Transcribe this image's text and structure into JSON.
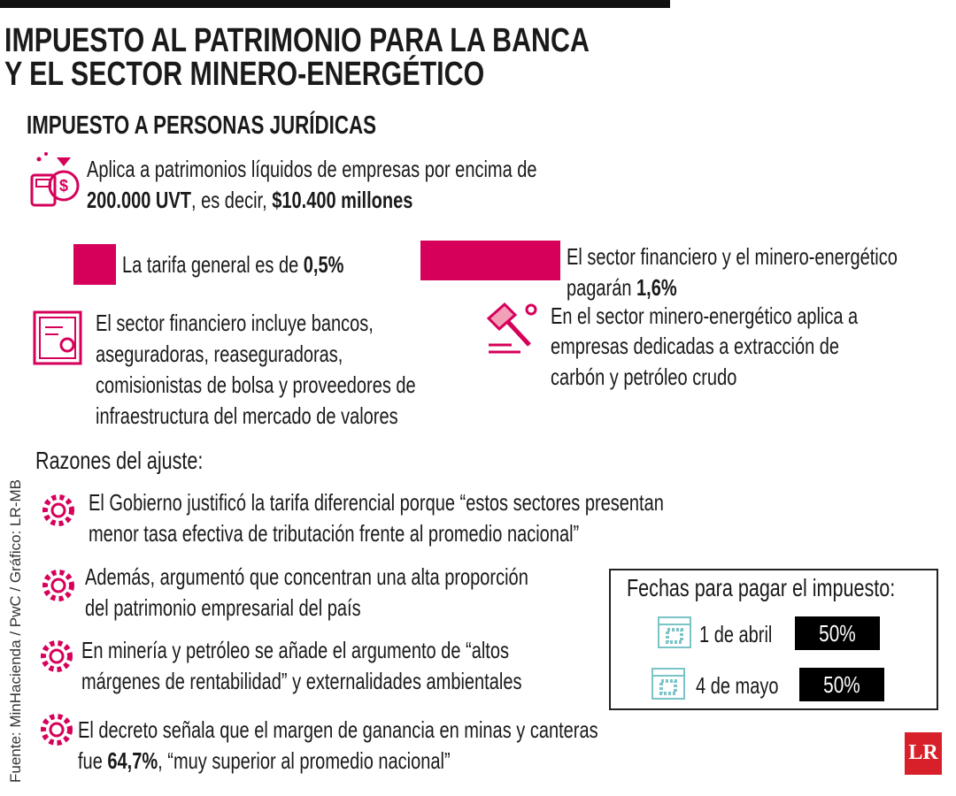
{
  "header": {
    "title_lines": [
      "IMPUESTO AL PATRIMONIO PARA LA BANCA",
      "Y EL SECTOR MINERO-ENERGÉTICO"
    ],
    "subtitle": "IMPUESTO A PERSONAS JURÍDICAS"
  },
  "intro": {
    "line1": "Aplica a patrimonios líquidos de empresas por encima de",
    "line2": [
      "200.000 UVT",
      ", es decir, ",
      "$10.400 millones"
    ]
  },
  "rates": {
    "general": [
      "La tarifa general es de ",
      "0,5%"
    ],
    "special": {
      "line1": "El sector financiero y el minero-energético",
      "line2": [
        "pagarán ",
        "1,6%"
      ]
    }
  },
  "sectors": {
    "financial": [
      "El sector financiero incluye bancos,",
      "aseguradoras, reaseguradoras,",
      "comisionistas de bolsa y proveedores de",
      "infraestructura del mercado de valores"
    ],
    "mining": [
      "En el sector minero-energético aplica a",
      "empresas dedicadas a extracción de",
      "carbón y petróleo crudo"
    ]
  },
  "reasons": {
    "title": "Razones del ajuste:",
    "items": [
      [
        "El Gobierno justificó la tarifa diferencial porque “estos sectores presentan",
        "menor tasa efectiva de tributación frente al promedio nacional”"
      ],
      [
        "Además, argumentó que concentran una alta proporción",
        "del patrimonio empresarial del país"
      ],
      [
        "En minería y petróleo se añade el argumento de “altos",
        "márgenes de rentabilidad” y externalidades ambientales"
      ],
      [
        "El decreto señala que el margen de ganancia en minas y canteras",
        [
          "fue ",
          "64,7%",
          ", “muy superior al promedio nacional”"
        ]
      ]
    ]
  },
  "payment": {
    "title": "Fechas para pagar el impuesto:",
    "dates": [
      {
        "date": "1 de abril",
        "share": "50%"
      },
      {
        "date": "4 de mayo",
        "share": "50%"
      }
    ]
  },
  "source": "Fuente: MinHacienda / PwC / Gráfico: LR-MB",
  "logo": "LR"
}
